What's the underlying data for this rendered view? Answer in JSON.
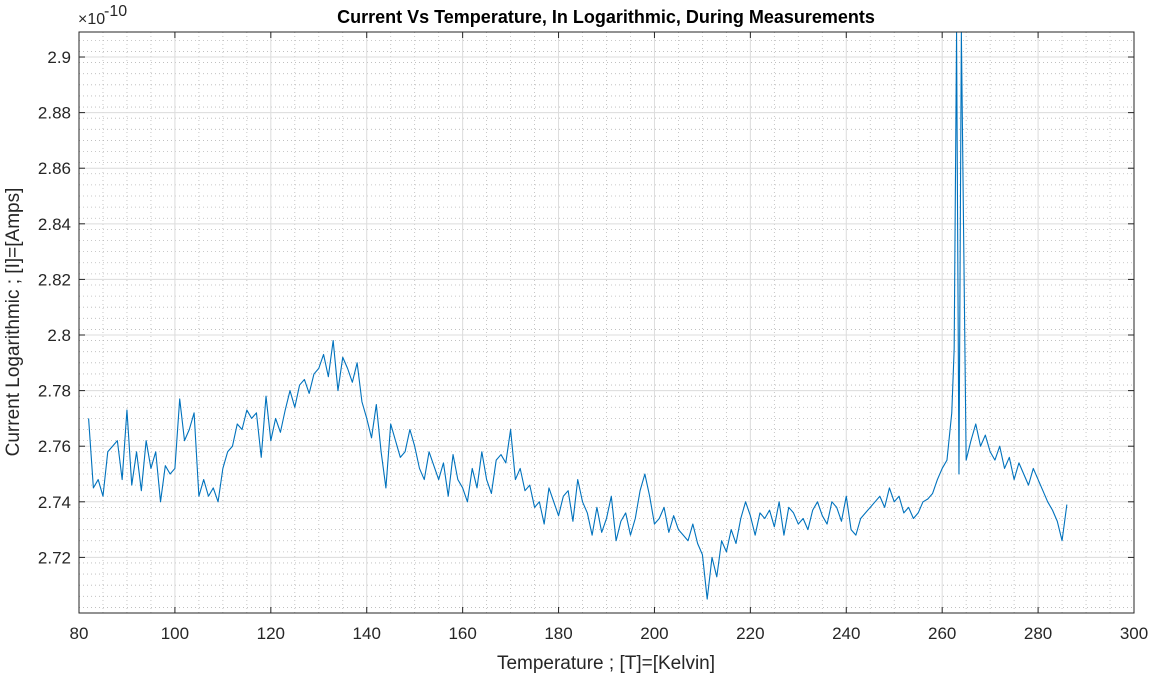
{
  "chart_data": {
    "type": "line",
    "title": "Current Vs Temperature, In Logarithmic, During Measurements",
    "xlabel": "Temperature ; [T]=[Kelvin]",
    "ylabel": "Current Logarithmic ; [I]=[Amps]",
    "y_exponent_base": "×10",
    "y_exponent_power": "-10",
    "xlim": [
      80,
      300
    ],
    "ylim": [
      2.7,
      2.909
    ],
    "x_ticks": [
      80,
      100,
      120,
      140,
      160,
      180,
      200,
      220,
      240,
      260,
      280,
      300
    ],
    "x_tick_labels": [
      "80",
      "100",
      "120",
      "140",
      "160",
      "180",
      "200",
      "220",
      "240",
      "260",
      "280",
      "300"
    ],
    "y_ticks": [
      2.72,
      2.74,
      2.76,
      2.78,
      2.8,
      2.82,
      2.84,
      2.86,
      2.88,
      2.9
    ],
    "y_tick_labels": [
      "2.72",
      "2.74",
      "2.76",
      "2.78",
      "2.8",
      "2.82",
      "2.84",
      "2.86",
      "2.88",
      "2.9"
    ],
    "grid": true,
    "minor_grid": true,
    "series": [
      {
        "color": "#0072BD",
        "x": [
          82,
          83,
          84,
          85,
          86,
          87,
          88,
          89,
          90,
          91,
          92,
          93,
          94,
          95,
          96,
          97,
          98,
          99,
          100,
          101,
          102,
          103,
          104,
          105,
          106,
          107,
          108,
          109,
          110,
          111,
          112,
          113,
          114,
          115,
          116,
          117,
          118,
          119,
          120,
          121,
          122,
          123,
          124,
          125,
          126,
          127,
          128,
          129,
          130,
          131,
          132,
          133,
          134,
          135,
          136,
          137,
          138,
          139,
          140,
          141,
          142,
          143,
          144,
          145,
          146,
          147,
          148,
          149,
          150,
          151,
          152,
          153,
          154,
          155,
          156,
          157,
          158,
          159,
          160,
          161,
          162,
          163,
          164,
          165,
          166,
          167,
          168,
          169,
          170,
          171,
          172,
          173,
          174,
          175,
          176,
          177,
          178,
          179,
          180,
          181,
          182,
          183,
          184,
          185,
          186,
          187,
          188,
          189,
          190,
          191,
          192,
          193,
          194,
          195,
          196,
          197,
          198,
          199,
          200,
          201,
          202,
          203,
          204,
          205,
          206,
          207,
          208,
          209,
          210,
          211,
          212,
          213,
          214,
          215,
          216,
          217,
          218,
          219,
          220,
          221,
          222,
          223,
          224,
          225,
          226,
          227,
          228,
          229,
          230,
          231,
          232,
          233,
          234,
          235,
          236,
          237,
          238,
          239,
          240,
          241,
          242,
          243,
          244,
          245,
          246,
          247,
          248,
          249,
          250,
          251,
          252,
          253,
          254,
          255,
          256,
          257,
          258,
          259,
          260,
          261,
          262,
          262.5,
          263,
          263.5,
          264,
          265,
          266,
          267,
          268,
          269,
          270,
          271,
          272,
          273,
          274,
          275,
          276,
          277,
          278,
          279,
          280,
          281,
          282,
          283,
          284,
          285,
          286
        ],
        "y": [
          2.77,
          2.745,
          2.748,
          2.742,
          2.758,
          2.76,
          2.762,
          2.748,
          2.773,
          2.746,
          2.758,
          2.744,
          2.762,
          2.752,
          2.758,
          2.74,
          2.753,
          2.75,
          2.752,
          2.777,
          2.762,
          2.766,
          2.772,
          2.742,
          2.748,
          2.742,
          2.745,
          2.74,
          2.752,
          2.758,
          2.76,
          2.768,
          2.766,
          2.773,
          2.77,
          2.772,
          2.756,
          2.778,
          2.762,
          2.77,
          2.765,
          2.773,
          2.78,
          2.774,
          2.782,
          2.784,
          2.779,
          2.786,
          2.788,
          2.793,
          2.785,
          2.798,
          2.78,
          2.792,
          2.788,
          2.783,
          2.79,
          2.776,
          2.77,
          2.763,
          2.775,
          2.758,
          2.745,
          2.768,
          2.762,
          2.756,
          2.758,
          2.766,
          2.76,
          2.752,
          2.748,
          2.758,
          2.753,
          2.748,
          2.754,
          2.742,
          2.757,
          2.748,
          2.745,
          2.74,
          2.752,
          2.745,
          2.758,
          2.748,
          2.743,
          2.755,
          2.757,
          2.754,
          2.766,
          2.748,
          2.752,
          2.744,
          2.746,
          2.738,
          2.74,
          2.732,
          2.745,
          2.74,
          2.735,
          2.742,
          2.744,
          2.733,
          2.748,
          2.74,
          2.736,
          2.728,
          2.738,
          2.729,
          2.734,
          2.742,
          2.726,
          2.733,
          2.736,
          2.728,
          2.734,
          2.744,
          2.75,
          2.742,
          2.732,
          2.734,
          2.738,
          2.729,
          2.735,
          2.73,
          2.728,
          2.726,
          2.732,
          2.725,
          2.721,
          2.705,
          2.72,
          2.713,
          2.726,
          2.722,
          2.73,
          2.725,
          2.734,
          2.74,
          2.735,
          2.728,
          2.736,
          2.734,
          2.737,
          2.731,
          2.74,
          2.728,
          2.738,
          2.736,
          2.732,
          2.734,
          2.73,
          2.737,
          2.74,
          2.735,
          2.732,
          2.74,
          2.738,
          2.733,
          2.742,
          2.73,
          2.728,
          2.734,
          2.736,
          2.738,
          2.74,
          2.742,
          2.738,
          2.745,
          2.74,
          2.742,
          2.736,
          2.738,
          2.734,
          2.736,
          2.74,
          2.741,
          2.743,
          2.748,
          2.752,
          2.755,
          2.772,
          2.795,
          2.909,
          2.75,
          2.909,
          2.755,
          2.762,
          2.768,
          2.76,
          2.764,
          2.758,
          2.755,
          2.76,
          2.752,
          2.756,
          2.748,
          2.754,
          2.75,
          2.746,
          2.752,
          2.748,
          2.744,
          2.74,
          2.737,
          2.733,
          2.726,
          2.739
        ]
      }
    ]
  }
}
